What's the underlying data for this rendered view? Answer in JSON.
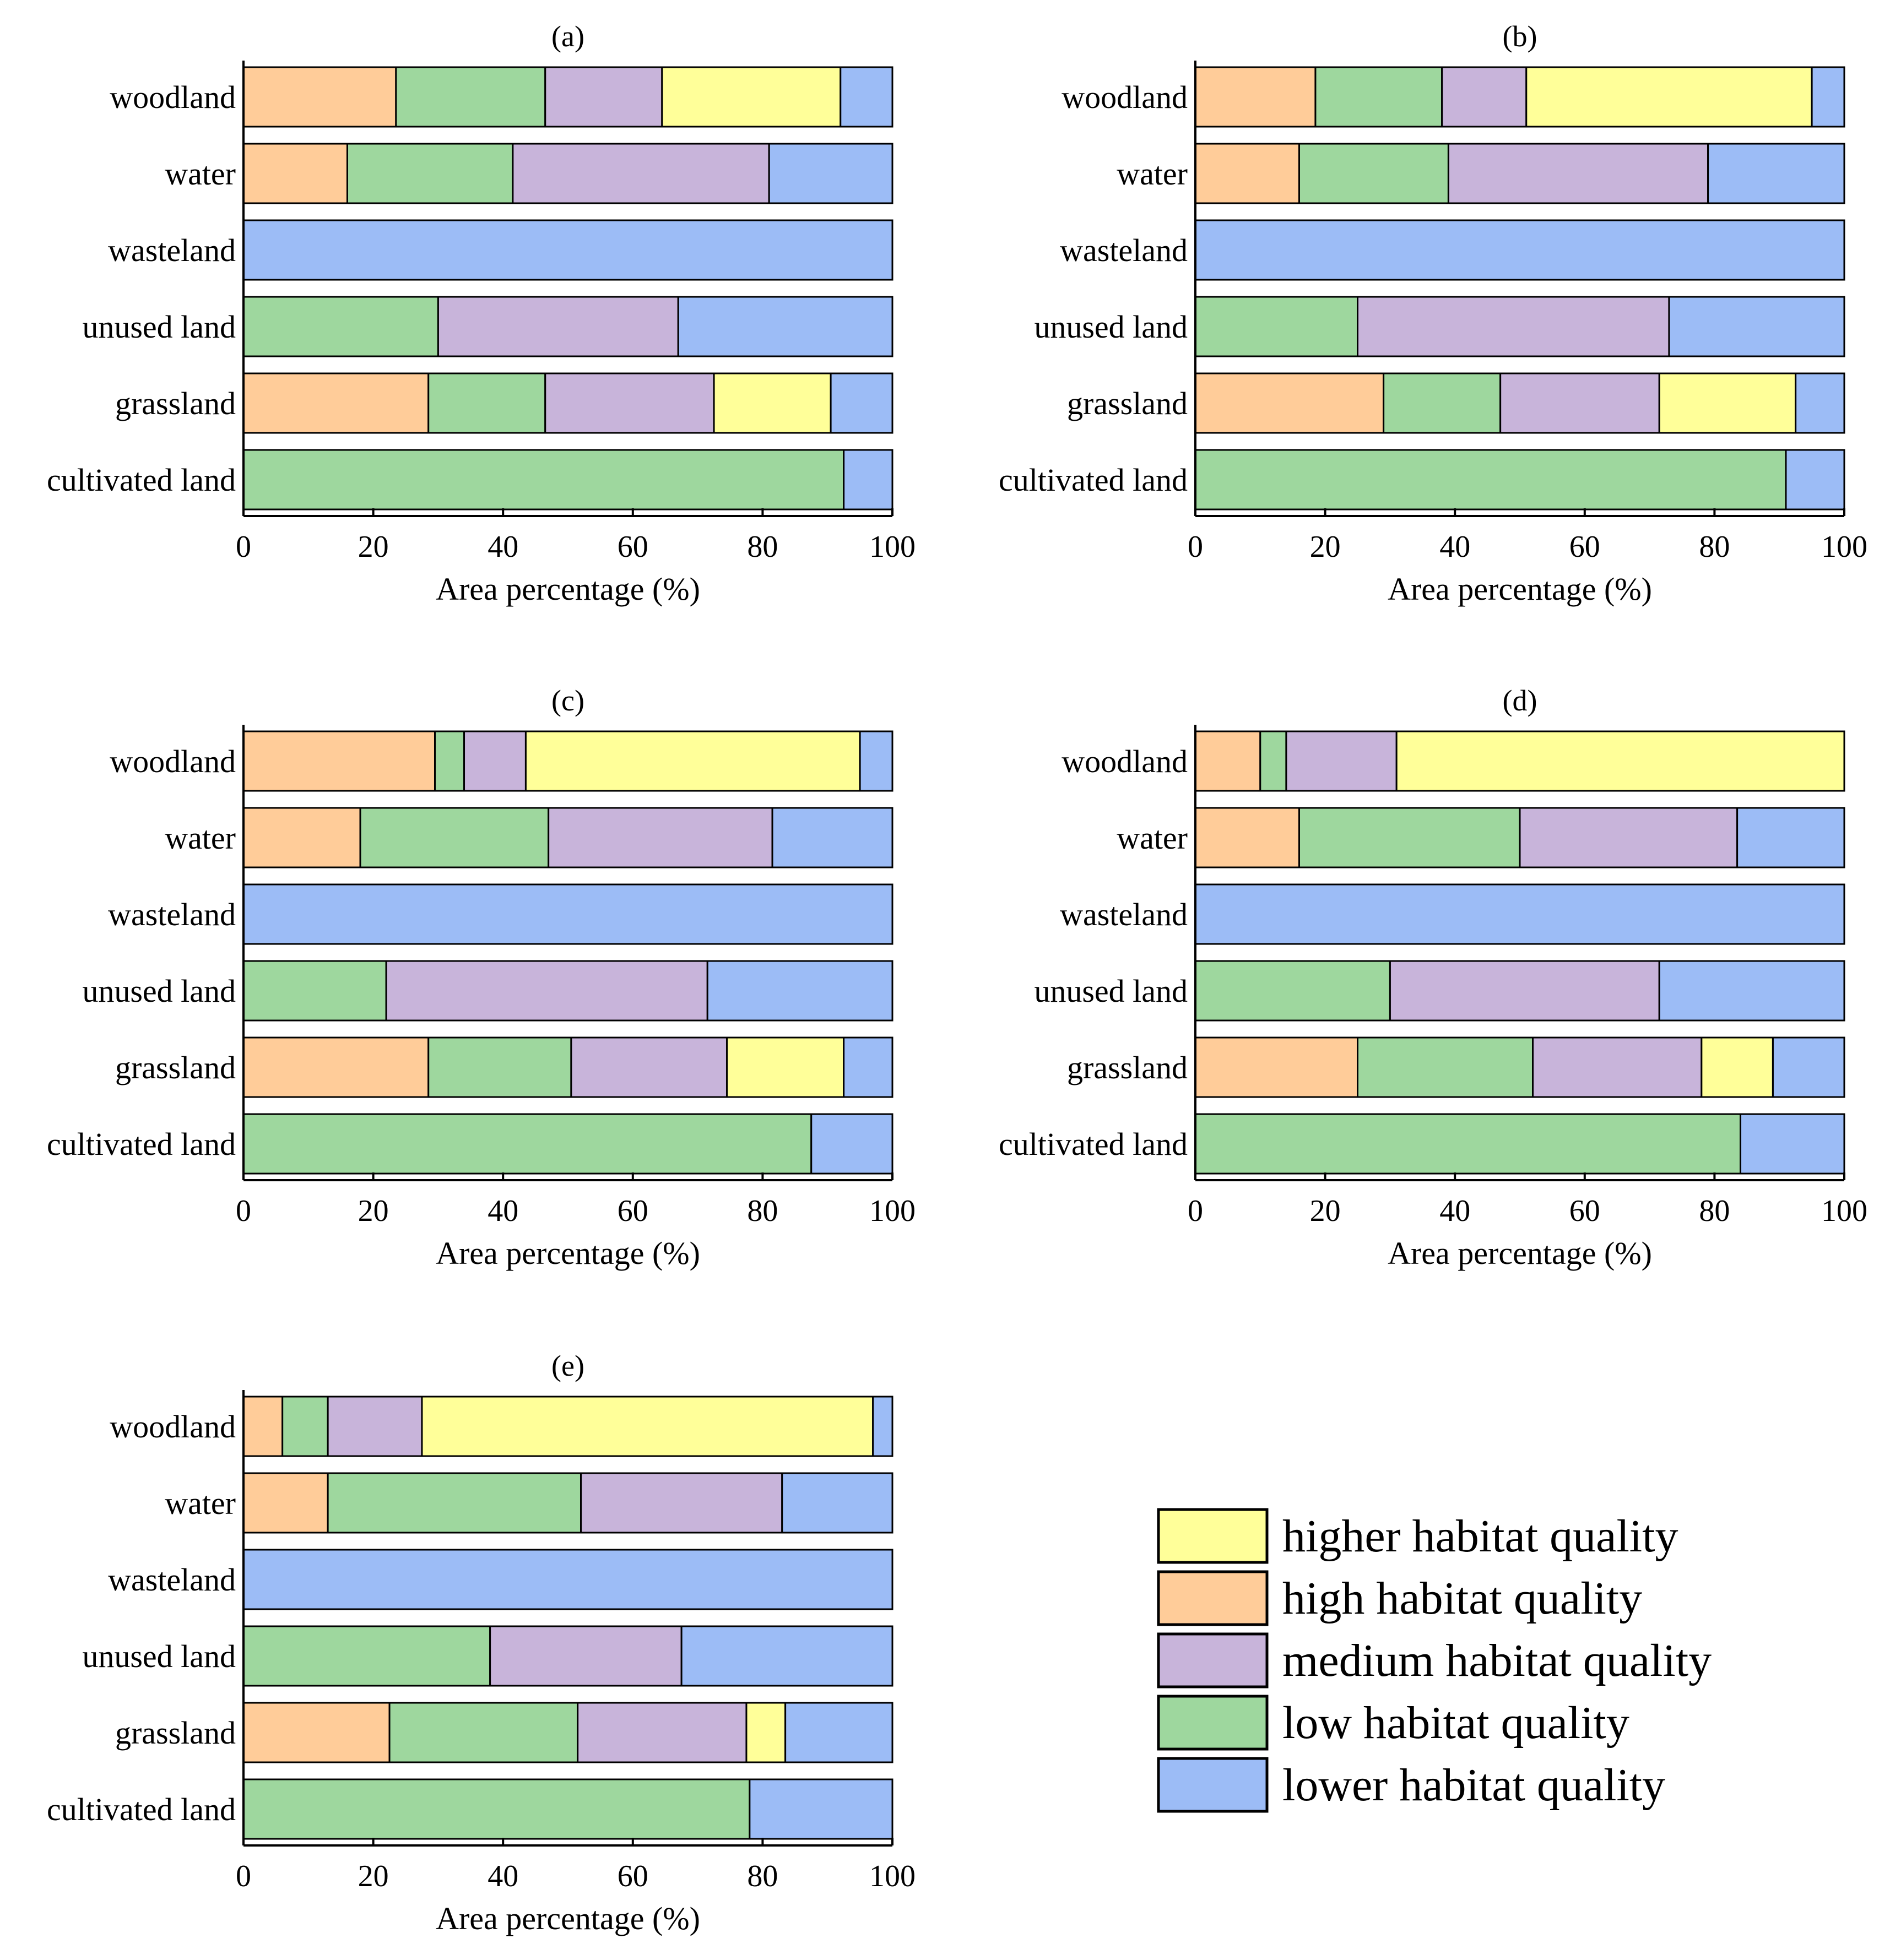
{
  "legend": {
    "entries": [
      {
        "key": "higher",
        "label": "higher habitat quality"
      },
      {
        "key": "high",
        "label": "high habitat quality"
      },
      {
        "key": "medium",
        "label": "medium habitat quality"
      },
      {
        "key": "low",
        "label": "low habitat quality"
      },
      {
        "key": "lower",
        "label": "lower habitat quality"
      }
    ]
  },
  "colors": {
    "higher": "#FFFF99",
    "high": "#FFCC99",
    "medium": "#C8B4DA",
    "low": "#9ED79E",
    "lower": "#9CBCF6"
  },
  "stack_order": [
    "high",
    "low",
    "medium",
    "higher",
    "lower"
  ],
  "chart_data": [
    {
      "type": "bar",
      "orientation": "horizontal",
      "stacked": true,
      "title": "(a)",
      "xlabel": "Area percentage (%)",
      "xlim": [
        0,
        100
      ],
      "xticks": [
        0,
        20,
        40,
        60,
        80,
        100
      ],
      "categories": [
        "woodland",
        "water",
        "wasteland",
        "unused land",
        "grassland",
        "cultivated land"
      ],
      "series": [
        {
          "key": "high",
          "values": [
            23.5,
            16,
            0,
            0,
            28.5,
            0
          ]
        },
        {
          "key": "low",
          "values": [
            23,
            25.5,
            0,
            30,
            18,
            92.5
          ]
        },
        {
          "key": "medium",
          "values": [
            18,
            39.5,
            0,
            37,
            26,
            0
          ]
        },
        {
          "key": "higher",
          "values": [
            27.5,
            0,
            0,
            0,
            18,
            0
          ]
        },
        {
          "key": "lower",
          "values": [
            8,
            19,
            100,
            33,
            9.5,
            7.5
          ]
        }
      ]
    },
    {
      "type": "bar",
      "orientation": "horizontal",
      "stacked": true,
      "title": "(b)",
      "xlabel": "Area percentage (%)",
      "xlim": [
        0,
        100
      ],
      "xticks": [
        0,
        20,
        40,
        60,
        80,
        100
      ],
      "categories": [
        "woodland",
        "water",
        "wasteland",
        "unused land",
        "grassland",
        "cultivated land"
      ],
      "series": [
        {
          "key": "high",
          "values": [
            18.5,
            16,
            0,
            0,
            29,
            0
          ]
        },
        {
          "key": "low",
          "values": [
            19.5,
            23,
            0,
            25,
            18,
            91
          ]
        },
        {
          "key": "medium",
          "values": [
            13,
            40,
            0,
            48,
            24.5,
            0
          ]
        },
        {
          "key": "higher",
          "values": [
            44,
            0,
            0,
            0,
            21,
            0
          ]
        },
        {
          "key": "lower",
          "values": [
            5,
            21,
            100,
            27,
            7.5,
            9
          ]
        }
      ]
    },
    {
      "type": "bar",
      "orientation": "horizontal",
      "stacked": true,
      "title": "(c)",
      "xlabel": "Area percentage (%)",
      "xlim": [
        0,
        100
      ],
      "xticks": [
        0,
        20,
        40,
        60,
        80,
        100
      ],
      "categories": [
        "woodland",
        "water",
        "wasteland",
        "unused land",
        "grassland",
        "cultivated land"
      ],
      "series": [
        {
          "key": "high",
          "values": [
            29.5,
            18,
            0,
            0,
            28.5,
            0
          ]
        },
        {
          "key": "low",
          "values": [
            4.5,
            29,
            0,
            22,
            22,
            87.5
          ]
        },
        {
          "key": "medium",
          "values": [
            9.5,
            34.5,
            0,
            49.5,
            24,
            0
          ]
        },
        {
          "key": "higher",
          "values": [
            51.5,
            0,
            0,
            0,
            18,
            0
          ]
        },
        {
          "key": "lower",
          "values": [
            5,
            18.5,
            100,
            28.5,
            7.5,
            12.5
          ]
        }
      ]
    },
    {
      "type": "bar",
      "orientation": "horizontal",
      "stacked": true,
      "title": "(d)",
      "xlabel": "Area percentage (%)",
      "xlim": [
        0,
        100
      ],
      "xticks": [
        0,
        20,
        40,
        60,
        80,
        100
      ],
      "categories": [
        "woodland",
        "water",
        "wasteland",
        "unused land",
        "grassland",
        "cultivated land"
      ],
      "series": [
        {
          "key": "high",
          "values": [
            10,
            16,
            0,
            0,
            25,
            0
          ]
        },
        {
          "key": "low",
          "values": [
            4,
            34,
            0,
            30,
            27,
            84
          ]
        },
        {
          "key": "medium",
          "values": [
            17,
            33.5,
            0,
            41.5,
            26,
            0
          ]
        },
        {
          "key": "higher",
          "values": [
            69,
            0,
            0,
            0,
            11,
            0
          ]
        },
        {
          "key": "lower",
          "values": [
            0,
            16.5,
            100,
            28.5,
            11,
            16
          ]
        }
      ]
    },
    {
      "type": "bar",
      "orientation": "horizontal",
      "stacked": true,
      "title": "(e)",
      "xlabel": "Area percentage (%)",
      "xlim": [
        0,
        100
      ],
      "xticks": [
        0,
        20,
        40,
        60,
        80,
        100
      ],
      "categories": [
        "woodland",
        "water",
        "wasteland",
        "unused land",
        "grassland",
        "cultivated land"
      ],
      "series": [
        {
          "key": "high",
          "values": [
            6,
            13,
            0,
            0,
            22.5,
            0
          ]
        },
        {
          "key": "low",
          "values": [
            7,
            39,
            0,
            38,
            29,
            78
          ]
        },
        {
          "key": "medium",
          "values": [
            14.5,
            31,
            0,
            29.5,
            26,
            0
          ]
        },
        {
          "key": "higher",
          "values": [
            69.5,
            0,
            0,
            0,
            6,
            0
          ]
        },
        {
          "key": "lower",
          "values": [
            3,
            17,
            100,
            32.5,
            16.5,
            22
          ]
        }
      ]
    }
  ]
}
